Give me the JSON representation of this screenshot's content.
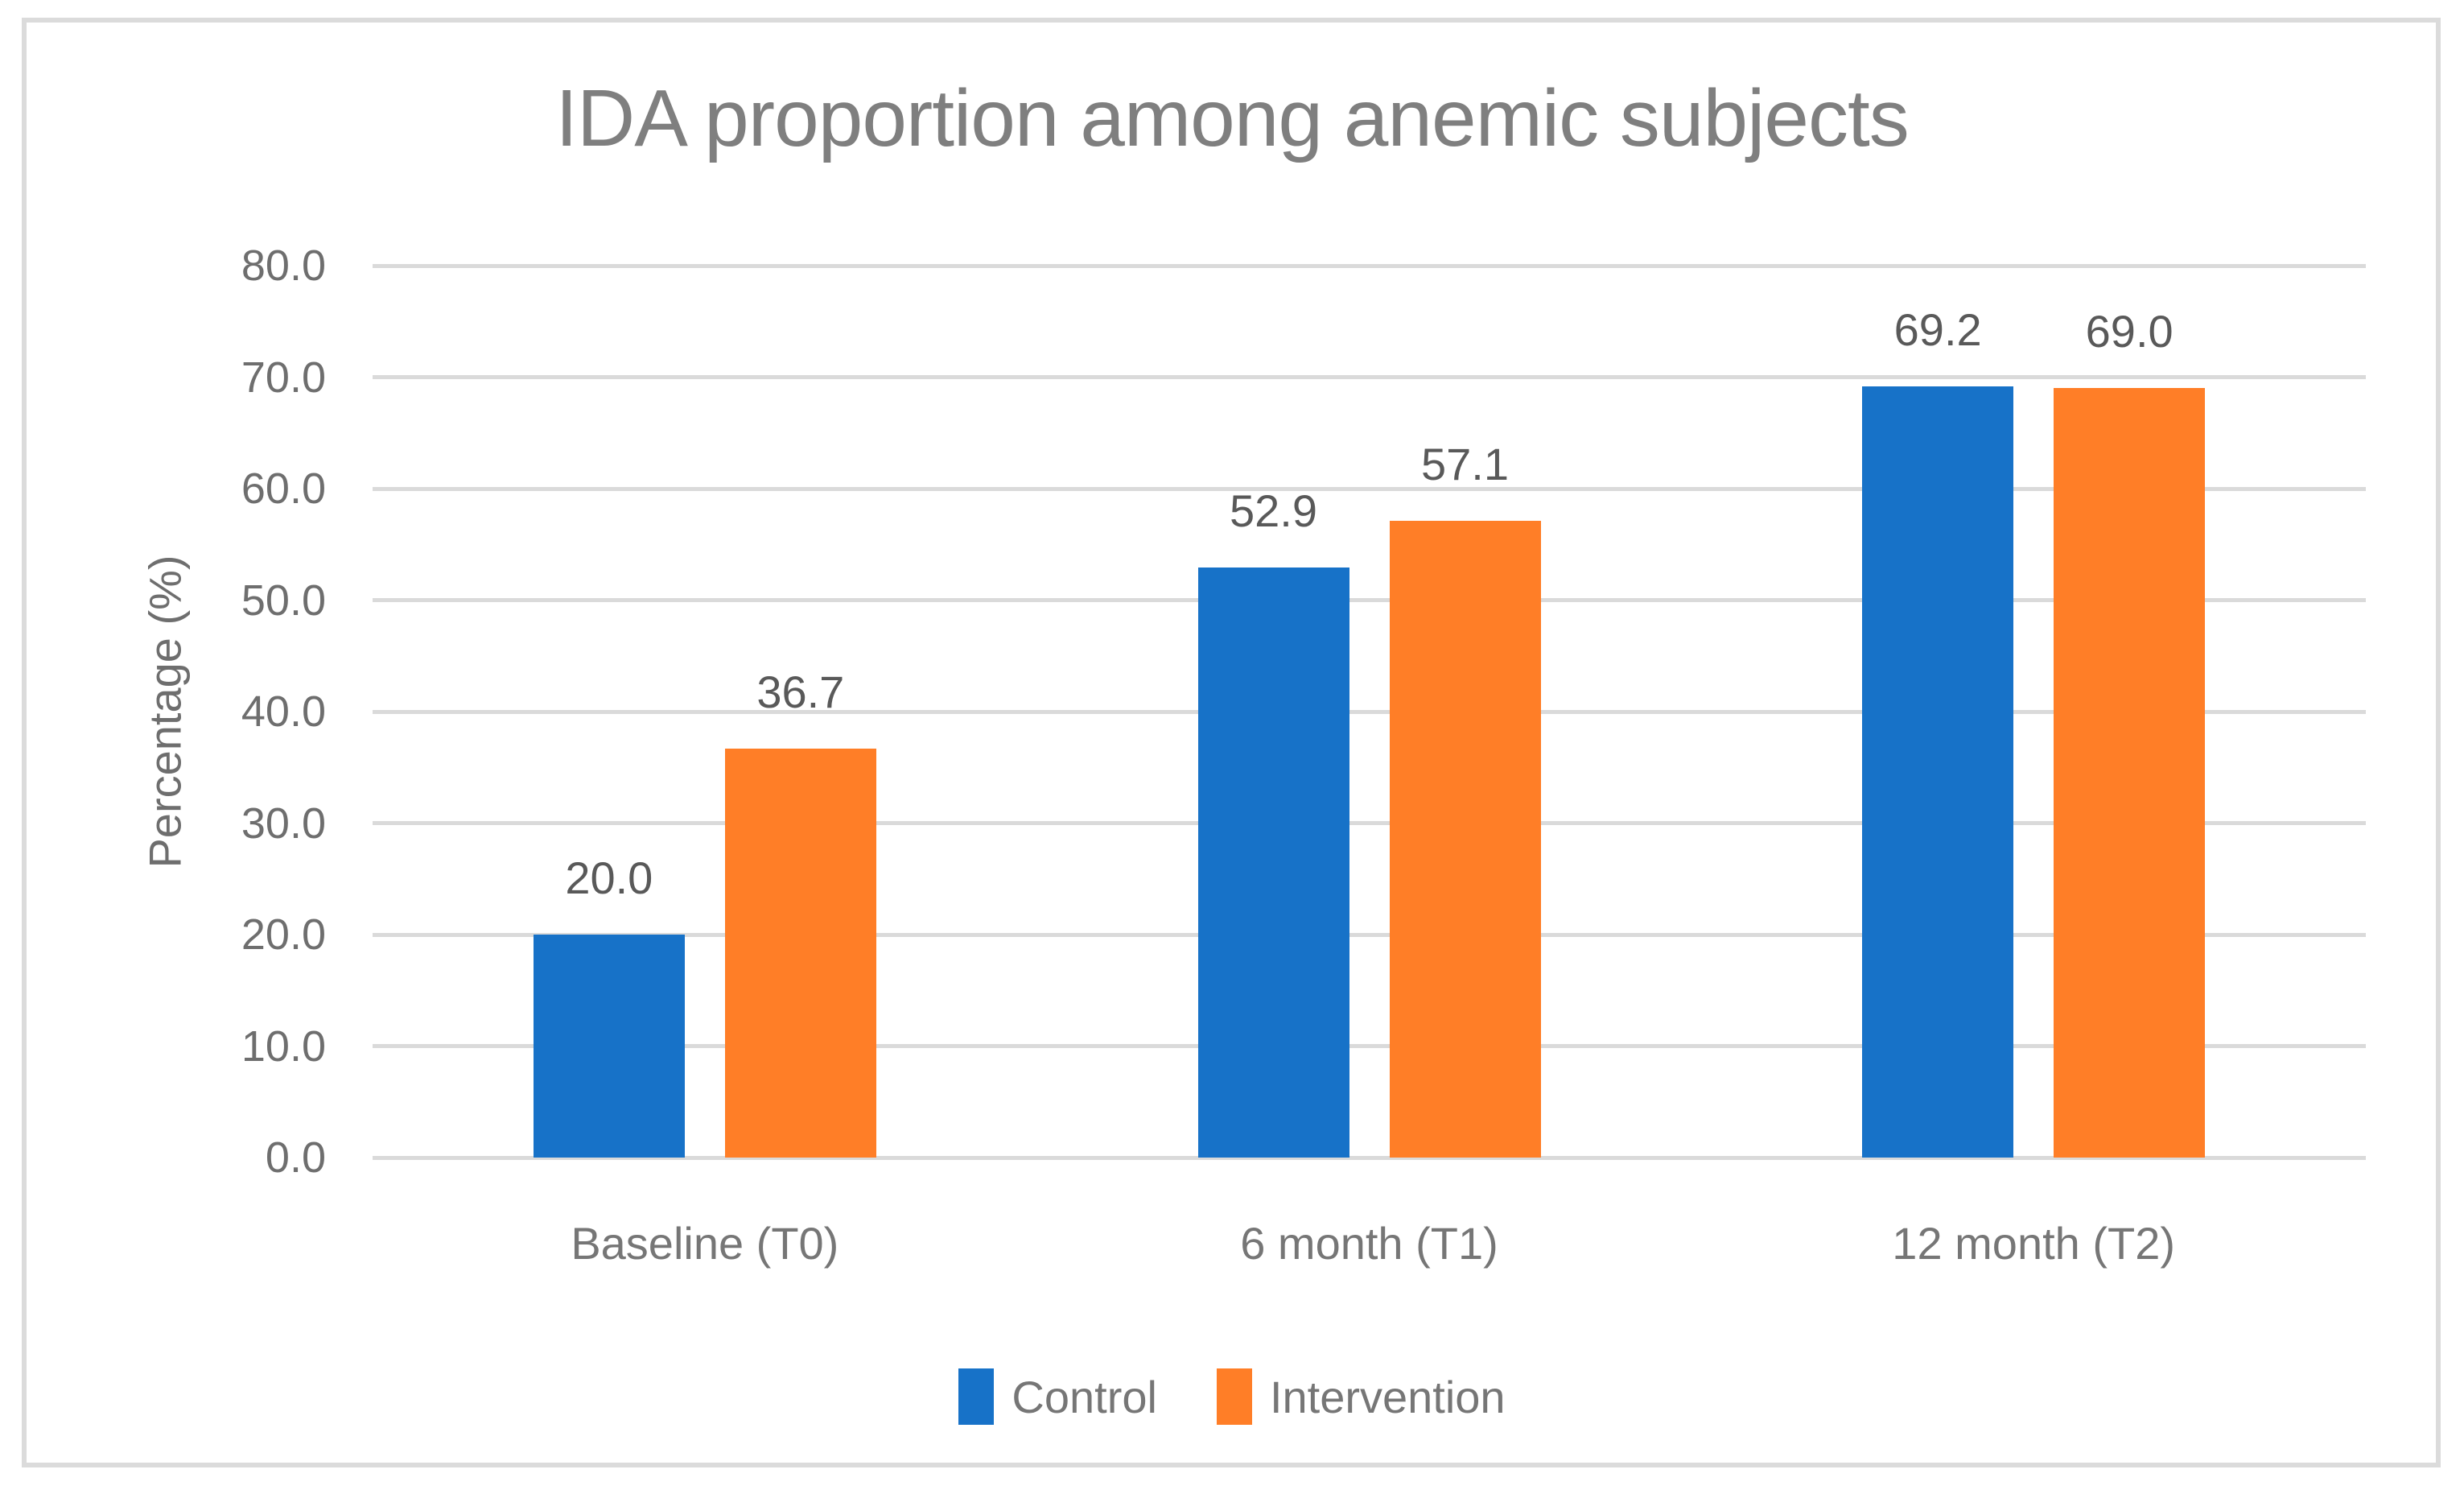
{
  "chart_data": {
    "type": "bar",
    "title": "IDA proportion among anemic subjects",
    "xlabel": "",
    "ylabel": "Percentage (%)",
    "categories": [
      "Baseline (T0)",
      "6 month (T1)",
      "12 month (T2)"
    ],
    "series": [
      {
        "name": "Control",
        "color": "#1772C8",
        "values": [
          20.0,
          52.9,
          69.2
        ]
      },
      {
        "name": "Intervention",
        "color": "#FF7E27",
        "values": [
          36.7,
          57.1,
          69.0
        ]
      }
    ],
    "data_labels": {
      "Control": [
        "20.0",
        "52.9",
        "69.2"
      ],
      "Intervention": [
        "36.7",
        "57.1",
        "69.0"
      ]
    },
    "ylim": [
      0,
      80
    ],
    "ytick_labels": [
      "0.0",
      "10.0",
      "20.0",
      "30.0",
      "40.0",
      "50.0",
      "60.0",
      "70.0",
      "80.0"
    ],
    "grid": "horizontal",
    "legend_position": "bottom"
  },
  "colors": {
    "background": "#FFFFFF",
    "frame_border": "#DBDBDB",
    "gridline": "#DADADA",
    "title_text": "#7F7F7F",
    "axis_text": "#6E6E6E",
    "category_text": "#767676",
    "data_label_text": "#595959",
    "control_blue": "#1772C8",
    "intervention_orange": "#FF7E27"
  }
}
